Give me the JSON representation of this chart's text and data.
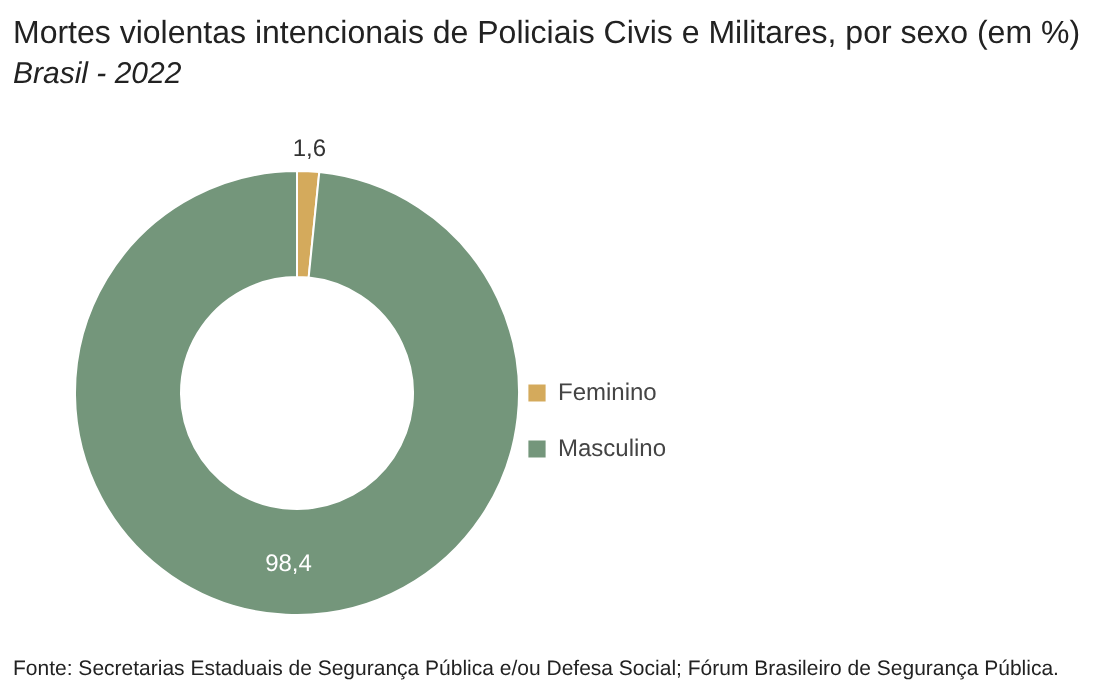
{
  "chart_data": {
    "type": "donut",
    "title": "Mortes violentas intencionais de Policiais Civis e Militares, por sexo (em %)",
    "subtitle": "Brasil - 2022",
    "categories": [
      "Feminino",
      "Masculino"
    ],
    "values": [
      1.6,
      98.4
    ],
    "colors": [
      "#d4aa5c",
      "#74967b"
    ],
    "value_labels": [
      "1,6",
      "98,4"
    ],
    "legend": "right",
    "annotations": [
      "Fonte: Secretarias Estaduais de Segurança Pública e/ou Defesa Social; Fórum Brasileiro de Segurança Pública."
    ]
  }
}
